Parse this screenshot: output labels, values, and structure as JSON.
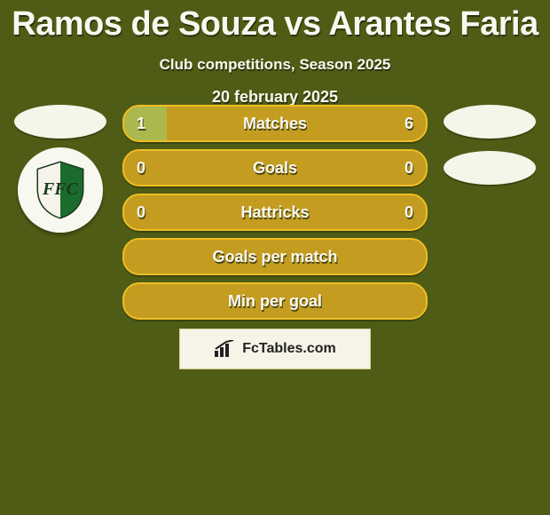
{
  "header": {
    "title": "Ramos de Souza vs Arantes Faria",
    "subtitle": "Club competitions, Season 2025"
  },
  "players": {
    "left": {
      "name": "Ramos de Souza",
      "club_badge_letters": "FFC"
    },
    "right": {
      "name": "Arantes Faria"
    }
  },
  "stats": {
    "type": "stat-bars",
    "colors": {
      "bar_background": "#c39c20",
      "bar_border": "#f0be23",
      "bar_fill": "#abb84d",
      "text": "#f8f8f0",
      "shadow": "#2c320b",
      "page_background": "#4e5c15",
      "brand_box_bg": "#f6f4e6",
      "brand_box_border": "#d6cf9a"
    },
    "rows": [
      {
        "key": "matches",
        "label": "Matches",
        "left": "1",
        "right": "6",
        "left_pct": 14,
        "right_pct": 0
      },
      {
        "key": "goals",
        "label": "Goals",
        "left": "0",
        "right": "0",
        "left_pct": 0,
        "right_pct": 0
      },
      {
        "key": "hattricks",
        "label": "Hattricks",
        "left": "0",
        "right": "0",
        "left_pct": 0,
        "right_pct": 0
      },
      {
        "key": "goals-per-match",
        "label": "Goals per match",
        "left": "",
        "right": "",
        "left_pct": 0,
        "right_pct": 0
      },
      {
        "key": "min-per-goal",
        "label": "Min per goal",
        "left": "",
        "right": "",
        "left_pct": 0,
        "right_pct": 0
      }
    ]
  },
  "brand": {
    "text": "FcTables.com"
  },
  "date": "20 february 2025"
}
